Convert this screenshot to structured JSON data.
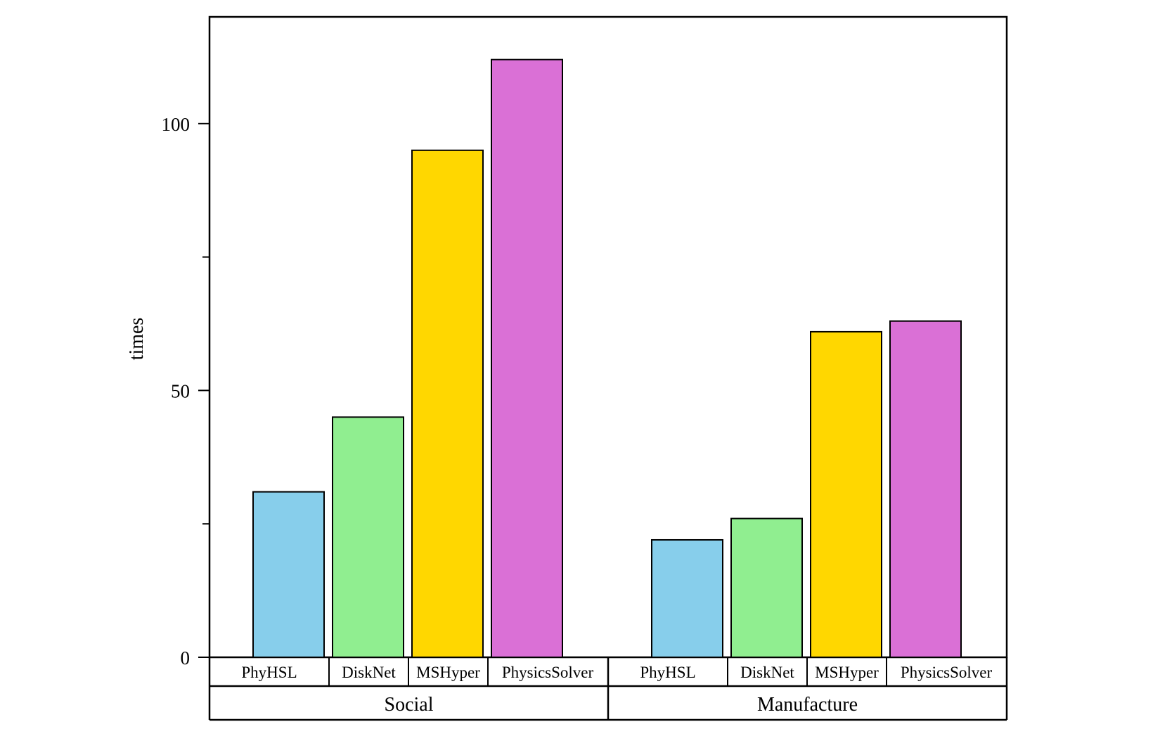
{
  "chart_data": {
    "type": "bar",
    "title": "",
    "xlabel": "",
    "ylabel": "times",
    "ylim": [
      0,
      120
    ],
    "yticks": [
      0,
      50,
      100
    ],
    "grid": false,
    "legend": "none",
    "series_labels": [
      "PhyHSL",
      "DiskNet",
      "MSHyper",
      "PhysicsSolver"
    ],
    "colors": [
      "#87ceeb",
      "#90ee90",
      "#ffd700",
      "#da70d6"
    ],
    "groups": [
      {
        "name": "Social",
        "values": [
          31,
          45,
          95,
          112
        ]
      },
      {
        "name": "Manufacture",
        "values": [
          22,
          26,
          61,
          63
        ]
      }
    ]
  }
}
